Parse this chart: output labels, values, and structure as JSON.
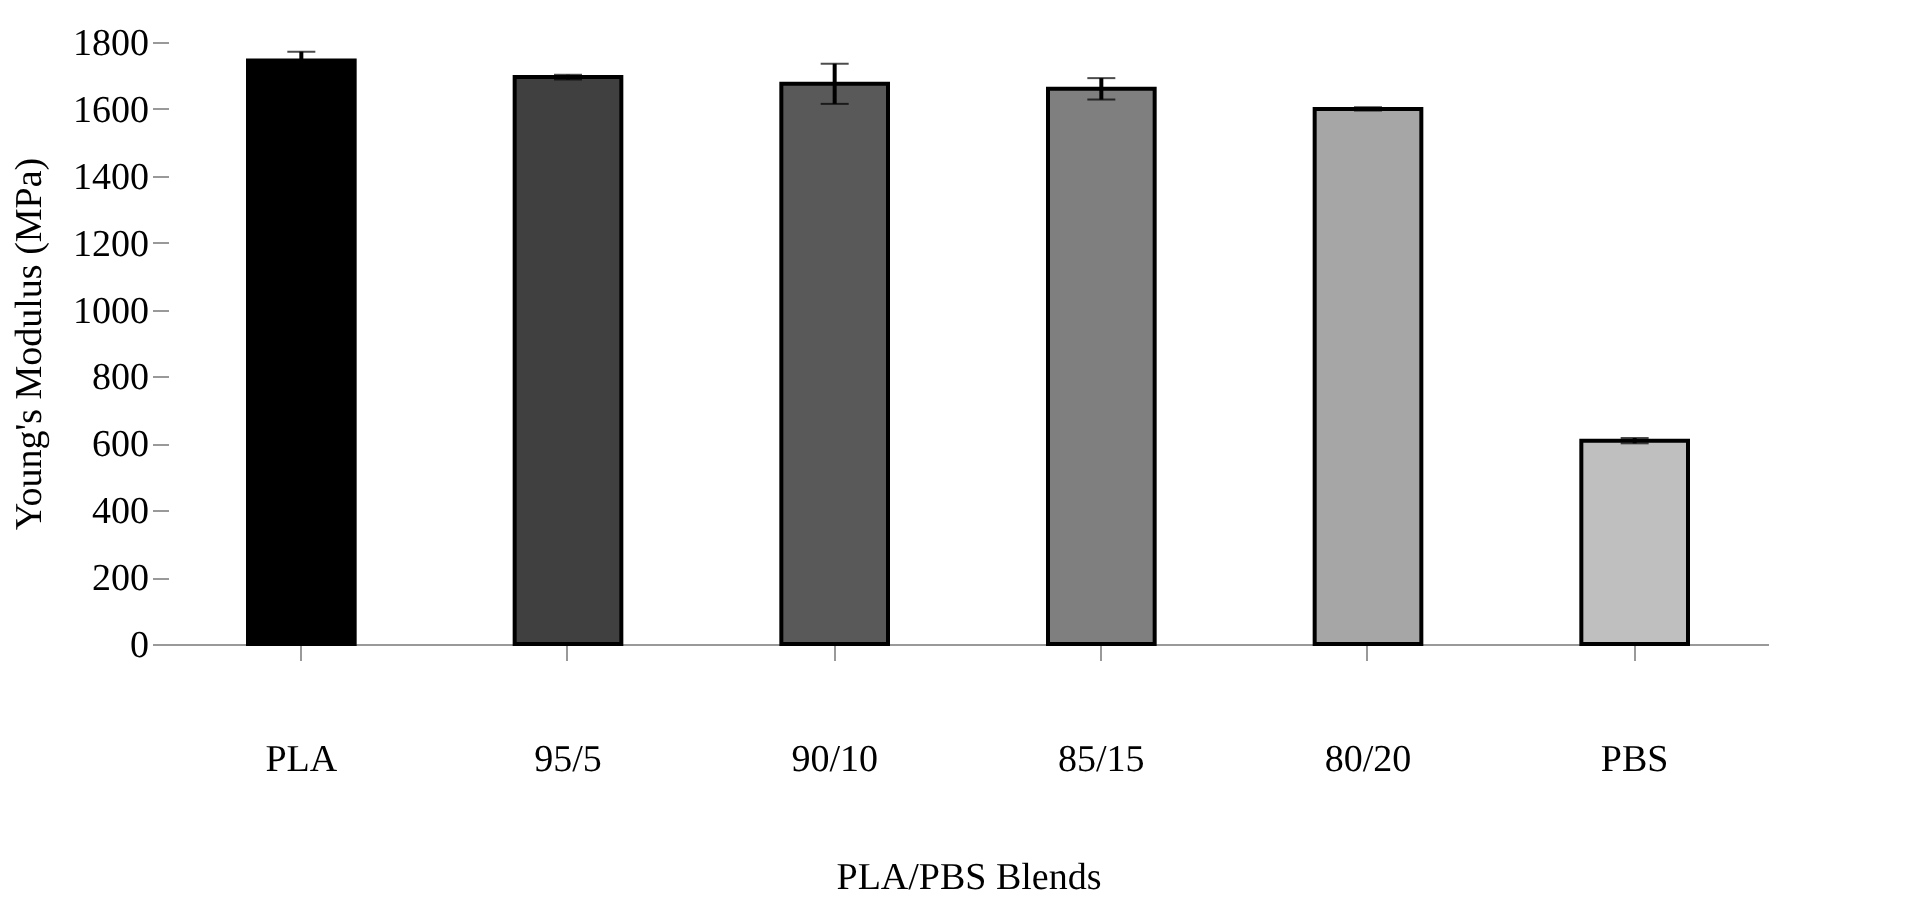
{
  "chart_data": {
    "type": "bar",
    "xlabel": "PLA/PBS Blends",
    "ylabel": "Young's Modulus (MPa)",
    "categories": [
      "PLA",
      "95/5",
      "90/10",
      "85/15",
      "80/20",
      "PBS"
    ],
    "values": [
      1745,
      1695,
      1675,
      1660,
      1600,
      608
    ],
    "errors": [
      26,
      7,
      60,
      32,
      5,
      8
    ],
    "colors": [
      "#000000",
      "#404040",
      "#595959",
      "#7f7f7f",
      "#a6a6a6",
      "#bfbfbf"
    ],
    "ylim": [
      0,
      1800
    ],
    "yticks": [
      0,
      200,
      400,
      600,
      800,
      1000,
      1200,
      1400,
      1600,
      1800
    ],
    "grid": false
  }
}
